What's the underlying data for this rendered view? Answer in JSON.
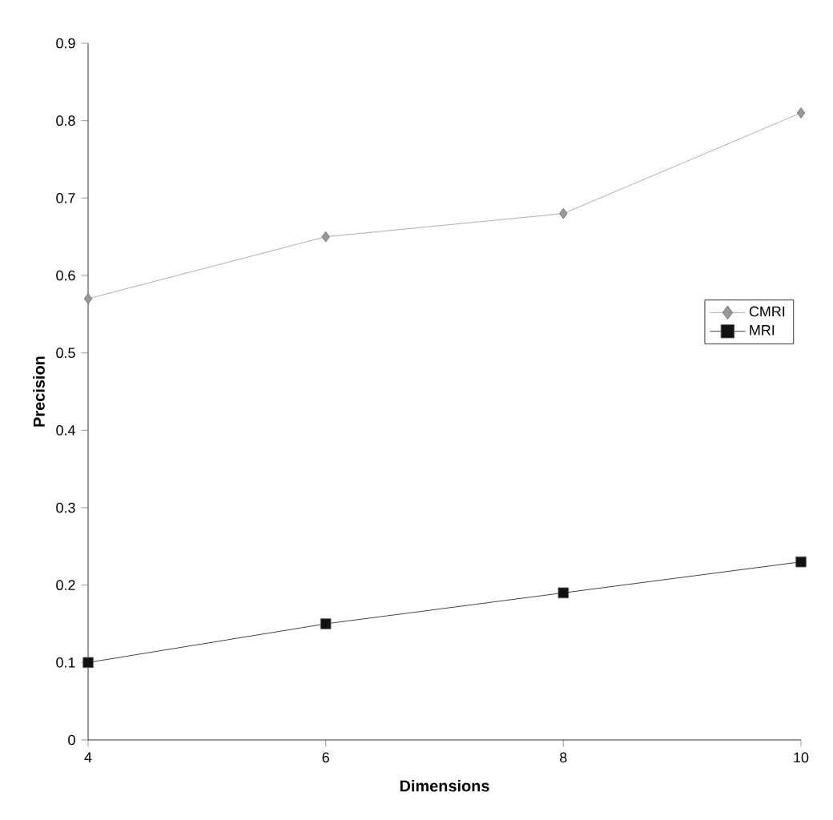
{
  "chart_data": {
    "type": "line",
    "xlabel": "Dimensions",
    "ylabel": "Precision",
    "x": [
      4,
      6,
      8,
      10
    ],
    "series": [
      {
        "name": "CMRI",
        "color": "#999999",
        "marker": "diamond",
        "values": [
          0.57,
          0.65,
          0.68,
          0.81
        ]
      },
      {
        "name": "MRI",
        "color": "#111111",
        "marker": "square",
        "values": [
          0.1,
          0.15,
          0.19,
          0.23
        ]
      }
    ],
    "xlim": [
      4,
      10
    ],
    "xticks": [
      4,
      6,
      8,
      10
    ],
    "ylim": [
      0,
      0.9
    ],
    "yticks": [
      0,
      0.1,
      0.2,
      0.3,
      0.4,
      0.5,
      0.6,
      0.7,
      0.8,
      0.9
    ],
    "legend": "right",
    "grid": false,
    "line_style": "solid"
  }
}
